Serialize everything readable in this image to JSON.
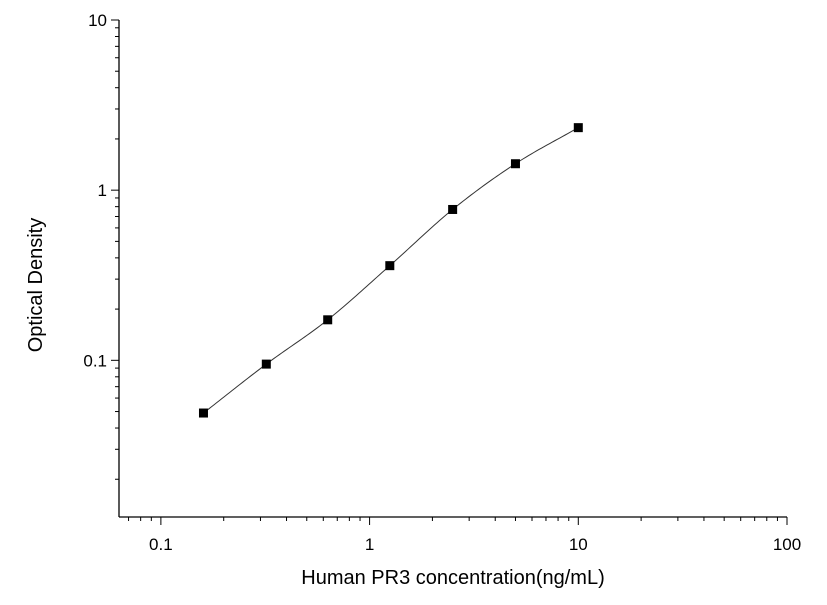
{
  "chart_data": {
    "type": "scatter",
    "title": "",
    "xlabel": "Human PR3 concentration(ng/mL)",
    "ylabel": "Optical Density",
    "x_scale": "log",
    "y_scale": "log",
    "xlim": [
      0.063,
      100
    ],
    "ylim": [
      0.012,
      10
    ],
    "x_ticks": [
      {
        "value": 0.1,
        "label": "0.1"
      },
      {
        "value": 1,
        "label": "1"
      },
      {
        "value": 10,
        "label": "10"
      },
      {
        "value": 100,
        "label": "100"
      }
    ],
    "y_ticks": [
      {
        "value": 0.1,
        "label": "0.1"
      },
      {
        "value": 1,
        "label": "1"
      },
      {
        "value": 10,
        "label": "10"
      }
    ],
    "grid": false,
    "legend": "none",
    "colors": {
      "marker": "#000000",
      "curve": "#333333",
      "axis": "#000000"
    },
    "series": [
      {
        "marker": "square",
        "points": [
          {
            "x": 0.16,
            "y": 0.049
          },
          {
            "x": 0.32,
            "y": 0.095
          },
          {
            "x": 0.63,
            "y": 0.173
          },
          {
            "x": 1.25,
            "y": 0.36
          },
          {
            "x": 2.5,
            "y": 0.77
          },
          {
            "x": 5,
            "y": 1.43
          },
          {
            "x": 10,
            "y": 2.33
          }
        ],
        "fit_curve": true
      }
    ]
  }
}
